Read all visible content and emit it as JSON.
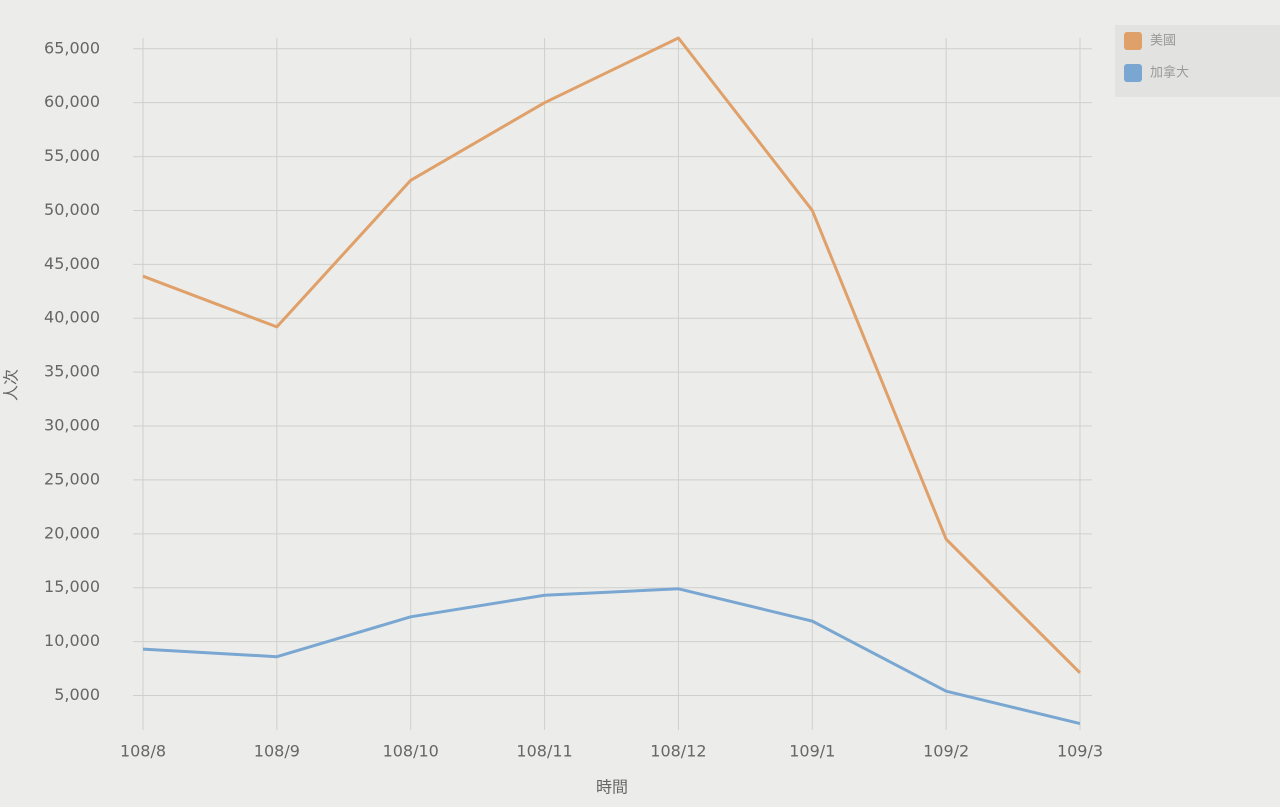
{
  "chart_data": {
    "type": "line",
    "y_label": "人次",
    "x_label": "時間",
    "categories": [
      "108/8",
      "108/9",
      "108/10",
      "108/11",
      "108/12",
      "109/1",
      "109/2",
      "109/3"
    ],
    "series": [
      {
        "name": "美國",
        "color": "#e0a06a",
        "values": [
          43900,
          39200,
          52800,
          60000,
          66000,
          50000,
          19500,
          7100
        ]
      },
      {
        "name": "加拿大",
        "color": "#7aa7d2",
        "values": [
          9300,
          8600,
          12300,
          14300,
          14900,
          11900,
          5400,
          2400
        ]
      }
    ],
    "ylim": [
      1800,
      66000
    ],
    "yticks": [
      {
        "value": 5000,
        "label": "5,000"
      },
      {
        "value": 10000,
        "label": "10,000"
      },
      {
        "value": 15000,
        "label": "15,000"
      },
      {
        "value": 20000,
        "label": "20,000"
      },
      {
        "value": 25000,
        "label": "25,000"
      },
      {
        "value": 30000,
        "label": "30,000"
      },
      {
        "value": 35000,
        "label": "35,000"
      },
      {
        "value": 40000,
        "label": "40,000"
      },
      {
        "value": 45000,
        "label": "45,000"
      },
      {
        "value": 50000,
        "label": "50,000"
      },
      {
        "value": 55000,
        "label": "55,000"
      },
      {
        "value": 60000,
        "label": "60,000"
      },
      {
        "value": 65000,
        "label": "65,000"
      }
    ],
    "grid": true,
    "legend": "top-right"
  }
}
